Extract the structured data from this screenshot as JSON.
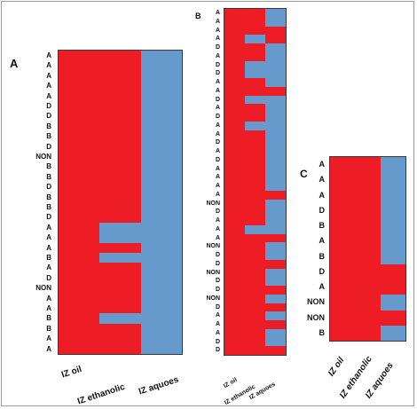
{
  "colors": {
    "red": "#ee1c25",
    "blue": "#6699cc"
  },
  "panels": [
    {
      "label": "A",
      "columns": [
        "IZ oil",
        "IZ ethanolic",
        "IZ aquoes"
      ],
      "rows": [
        {
          "label": "A",
          "cells": [
            "red",
            "red",
            "blue"
          ]
        },
        {
          "label": "A",
          "cells": [
            "red",
            "red",
            "blue"
          ]
        },
        {
          "label": "A",
          "cells": [
            "red",
            "red",
            "blue"
          ]
        },
        {
          "label": "A",
          "cells": [
            "red",
            "red",
            "blue"
          ]
        },
        {
          "label": "A",
          "cells": [
            "red",
            "red",
            "blue"
          ]
        },
        {
          "label": "D",
          "cells": [
            "red",
            "red",
            "blue"
          ]
        },
        {
          "label": "D",
          "cells": [
            "red",
            "red",
            "blue"
          ]
        },
        {
          "label": "B",
          "cells": [
            "red",
            "red",
            "blue"
          ]
        },
        {
          "label": "B",
          "cells": [
            "red",
            "red",
            "blue"
          ]
        },
        {
          "label": "D",
          "cells": [
            "red",
            "red",
            "blue"
          ]
        },
        {
          "label": "NON",
          "cells": [
            "red",
            "red",
            "blue"
          ]
        },
        {
          "label": "B",
          "cells": [
            "red",
            "red",
            "blue"
          ]
        },
        {
          "label": "B",
          "cells": [
            "red",
            "red",
            "blue"
          ]
        },
        {
          "label": "D",
          "cells": [
            "red",
            "red",
            "blue"
          ]
        },
        {
          "label": "B",
          "cells": [
            "red",
            "red",
            "blue"
          ]
        },
        {
          "label": "B",
          "cells": [
            "red",
            "red",
            "blue"
          ]
        },
        {
          "label": "D",
          "cells": [
            "red",
            "red",
            "blue"
          ]
        },
        {
          "label": "A",
          "cells": [
            "red",
            "blue",
            "blue"
          ]
        },
        {
          "label": "A",
          "cells": [
            "red",
            "blue",
            "blue"
          ]
        },
        {
          "label": "A",
          "cells": [
            "red",
            "red",
            "blue"
          ]
        },
        {
          "label": "B",
          "cells": [
            "red",
            "blue",
            "blue"
          ]
        },
        {
          "label": "A",
          "cells": [
            "red",
            "red",
            "blue"
          ]
        },
        {
          "label": "D",
          "cells": [
            "red",
            "red",
            "blue"
          ]
        },
        {
          "label": "NON",
          "cells": [
            "red",
            "red",
            "blue"
          ]
        },
        {
          "label": "A",
          "cells": [
            "red",
            "red",
            "blue"
          ]
        },
        {
          "label": "A",
          "cells": [
            "red",
            "red",
            "blue"
          ]
        },
        {
          "label": "B",
          "cells": [
            "red",
            "blue",
            "blue"
          ]
        },
        {
          "label": "B",
          "cells": [
            "red",
            "red",
            "blue"
          ]
        },
        {
          "label": "A",
          "cells": [
            "red",
            "red",
            "blue"
          ]
        },
        {
          "label": "A",
          "cells": [
            "red",
            "red",
            "blue"
          ]
        }
      ]
    },
    {
      "label": "B",
      "columns": [
        "IZ oil",
        "IZ ethanolic",
        "IZ aquoes"
      ],
      "rows": [
        {
          "label": "A",
          "cells": [
            "red",
            "red",
            "blue"
          ]
        },
        {
          "label": "A",
          "cells": [
            "red",
            "red",
            "blue"
          ]
        },
        {
          "label": "A",
          "cells": [
            "red",
            "red",
            "red"
          ]
        },
        {
          "label": "A",
          "cells": [
            "red",
            "blue",
            "red"
          ]
        },
        {
          "label": "D",
          "cells": [
            "red",
            "red",
            "blue"
          ]
        },
        {
          "label": "A",
          "cells": [
            "red",
            "red",
            "blue"
          ]
        },
        {
          "label": "D",
          "cells": [
            "red",
            "blue",
            "blue"
          ]
        },
        {
          "label": "D",
          "cells": [
            "red",
            "blue",
            "blue"
          ]
        },
        {
          "label": "A",
          "cells": [
            "red",
            "red",
            "blue"
          ]
        },
        {
          "label": "A",
          "cells": [
            "red",
            "red",
            "red"
          ]
        },
        {
          "label": "D",
          "cells": [
            "red",
            "blue",
            "blue"
          ]
        },
        {
          "label": "A",
          "cells": [
            "red",
            "red",
            "blue"
          ]
        },
        {
          "label": "D",
          "cells": [
            "red",
            "red",
            "blue"
          ]
        },
        {
          "label": "A",
          "cells": [
            "red",
            "blue",
            "blue"
          ]
        },
        {
          "label": "A",
          "cells": [
            "red",
            "red",
            "blue"
          ]
        },
        {
          "label": "D",
          "cells": [
            "red",
            "red",
            "blue"
          ]
        },
        {
          "label": "A",
          "cells": [
            "red",
            "red",
            "blue"
          ]
        },
        {
          "label": "D",
          "cells": [
            "red",
            "red",
            "blue"
          ]
        },
        {
          "label": "A",
          "cells": [
            "red",
            "red",
            "blue"
          ]
        },
        {
          "label": "A",
          "cells": [
            "red",
            "red",
            "blue"
          ]
        },
        {
          "label": "A",
          "cells": [
            "red",
            "red",
            "blue"
          ]
        },
        {
          "label": "A",
          "cells": [
            "red",
            "red",
            "red"
          ]
        },
        {
          "label": "NON",
          "cells": [
            "red",
            "red",
            "blue"
          ]
        },
        {
          "label": "D",
          "cells": [
            "red",
            "red",
            "blue"
          ]
        },
        {
          "label": "A",
          "cells": [
            "red",
            "red",
            "blue"
          ]
        },
        {
          "label": "A",
          "cells": [
            "red",
            "blue",
            "blue"
          ]
        },
        {
          "label": "A",
          "cells": [
            "red",
            "red",
            "red"
          ]
        },
        {
          "label": "NON",
          "cells": [
            "red",
            "red",
            "blue"
          ]
        },
        {
          "label": "D",
          "cells": [
            "red",
            "red",
            "blue"
          ]
        },
        {
          "label": "D",
          "cells": [
            "red",
            "red",
            "red"
          ]
        },
        {
          "label": "NON",
          "cells": [
            "red",
            "red",
            "blue"
          ]
        },
        {
          "label": "D",
          "cells": [
            "red",
            "red",
            "blue"
          ]
        },
        {
          "label": "D",
          "cells": [
            "red",
            "red",
            "red"
          ]
        },
        {
          "label": "NON",
          "cells": [
            "red",
            "red",
            "blue"
          ]
        },
        {
          "label": "D",
          "cells": [
            "red",
            "red",
            "red"
          ]
        },
        {
          "label": "A",
          "cells": [
            "red",
            "red",
            "blue"
          ]
        },
        {
          "label": "A",
          "cells": [
            "red",
            "red",
            "red"
          ]
        },
        {
          "label": "A",
          "cells": [
            "red",
            "red",
            "blue"
          ]
        },
        {
          "label": "D",
          "cells": [
            "red",
            "red",
            "blue"
          ]
        },
        {
          "label": "D",
          "cells": [
            "red",
            "red",
            "red"
          ]
        }
      ]
    },
    {
      "label": "C",
      "columns": [
        "IZ oil",
        "IZ ethanolic",
        "IZ aquoes"
      ],
      "rows": [
        {
          "label": "A",
          "cells": [
            "red",
            "red",
            "blue"
          ]
        },
        {
          "label": "A",
          "cells": [
            "red",
            "red",
            "blue"
          ]
        },
        {
          "label": "A",
          "cells": [
            "red",
            "red",
            "blue"
          ]
        },
        {
          "label": "D",
          "cells": [
            "red",
            "red",
            "blue"
          ]
        },
        {
          "label": "B",
          "cells": [
            "red",
            "red",
            "blue"
          ]
        },
        {
          "label": "A",
          "cells": [
            "red",
            "red",
            "blue"
          ]
        },
        {
          "label": "B",
          "cells": [
            "red",
            "red",
            "blue"
          ]
        },
        {
          "label": "D",
          "cells": [
            "red",
            "red",
            "red"
          ]
        },
        {
          "label": "A",
          "cells": [
            "red",
            "red",
            "red"
          ]
        },
        {
          "label": "NON",
          "cells": [
            "red",
            "red",
            "blue"
          ]
        },
        {
          "label": "NON",
          "cells": [
            "red",
            "red",
            "red"
          ]
        },
        {
          "label": "B",
          "cells": [
            "red",
            "red",
            "blue"
          ]
        }
      ]
    }
  ]
}
